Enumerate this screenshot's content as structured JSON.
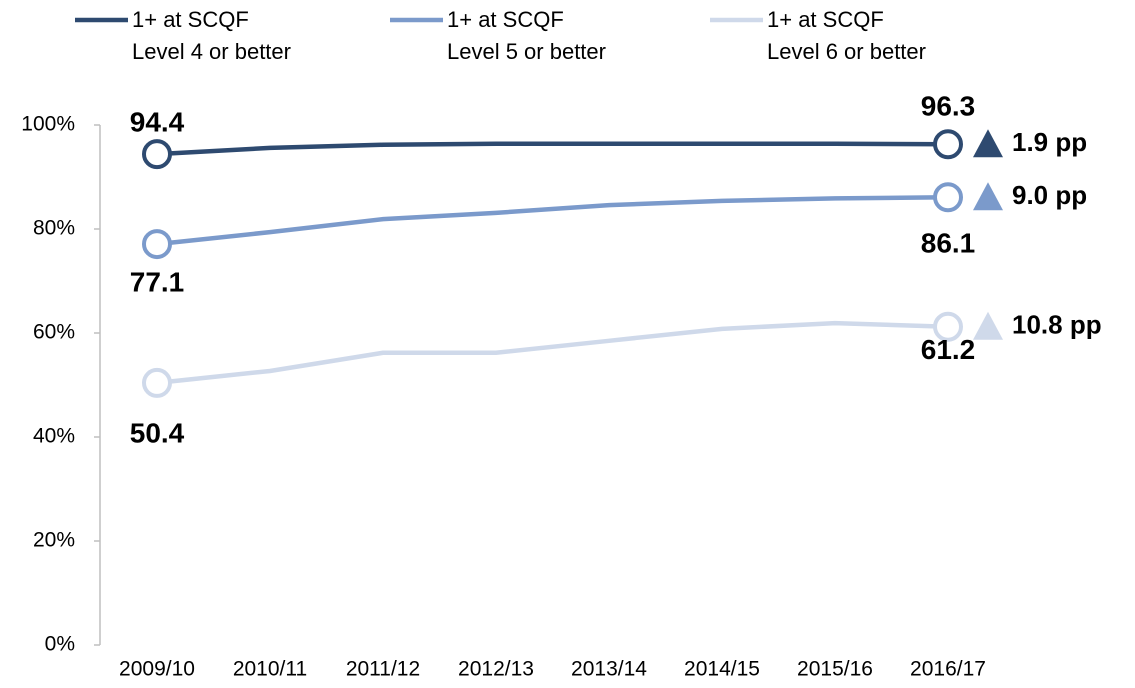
{
  "chart_data": {
    "type": "line",
    "categories": [
      "2009/10",
      "2010/11",
      "2011/12",
      "2012/13",
      "2013/14",
      "2014/15",
      "2015/16",
      "2016/17"
    ],
    "series": [
      {
        "name": "1+ at SCQF\nLevel 4 or better",
        "color": "#2e4a70",
        "values": [
          94.4,
          95.6,
          96.2,
          96.4,
          96.4,
          96.4,
          96.4,
          96.3
        ],
        "change_label": "1.9 pp"
      },
      {
        "name": "1+ at SCQF\nLevel 5 or better",
        "color": "#7b9acb",
        "values": [
          77.1,
          79.4,
          81.9,
          83.1,
          84.6,
          85.4,
          85.9,
          86.1
        ],
        "change_label": "9.0 pp"
      },
      {
        "name": "1+ at SCQF\nLevel 6 or better",
        "color": "#cfd9ea",
        "values": [
          50.4,
          52.7,
          56.2,
          56.2,
          58.5,
          60.8,
          61.9,
          61.2
        ],
        "change_label": "10.8 pp"
      }
    ],
    "ylim": [
      0,
      100
    ],
    "yticks": [
      {
        "value": 0,
        "label": "0%"
      },
      {
        "value": 20,
        "label": "20%"
      },
      {
        "value": 40,
        "label": "40%"
      },
      {
        "value": 60,
        "label": "60%"
      },
      {
        "value": 80,
        "label": "80%"
      },
      {
        "value": 100,
        "label": "100%"
      }
    ],
    "grid": false
  }
}
